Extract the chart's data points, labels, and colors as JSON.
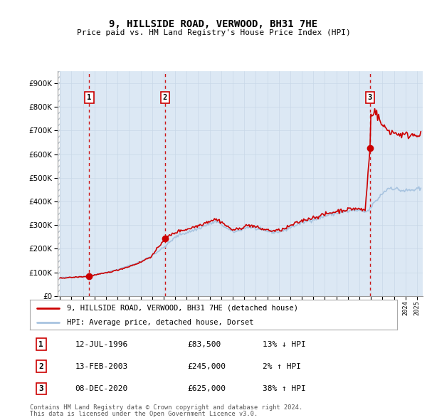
{
  "title": "9, HILLSIDE ROAD, VERWOOD, BH31 7HE",
  "subtitle": "Price paid vs. HM Land Registry's House Price Index (HPI)",
  "legend_line1": "9, HILLSIDE ROAD, VERWOOD, BH31 7HE (detached house)",
  "legend_line2": "HPI: Average price, detached house, Dorset",
  "sale_info": [
    [
      "1",
      "12-JUL-1996",
      "£83,500",
      "13% ↓ HPI"
    ],
    [
      "2",
      "13-FEB-2003",
      "£245,000",
      "2% ↑ HPI"
    ],
    [
      "3",
      "08-DEC-2020",
      "£625,000",
      "38% ↑ HPI"
    ]
  ],
  "footer1": "Contains HM Land Registry data © Crown copyright and database right 2024.",
  "footer2": "This data is licensed under the Open Government Licence v3.0.",
  "hpi_color": "#a8c4e0",
  "price_color": "#cc0000",
  "sale_line_color": "#cc0000",
  "ylim": [
    0,
    950000
  ],
  "yticks": [
    0,
    100000,
    200000,
    300000,
    400000,
    500000,
    600000,
    700000,
    800000,
    900000
  ],
  "sale_year_floats": [
    1996.54,
    2003.12,
    2020.92
  ],
  "sale_prices": [
    83500,
    245000,
    625000
  ],
  "sale_labels": [
    "1",
    "2",
    "3"
  ],
  "xlim_start": 1993.8,
  "xlim_end": 2025.5,
  "grid_color": "#c8d8e8",
  "plot_bg": "#dce8f4",
  "outer_bg": "#ffffff",
  "hatch_color": "#c0c8d0"
}
